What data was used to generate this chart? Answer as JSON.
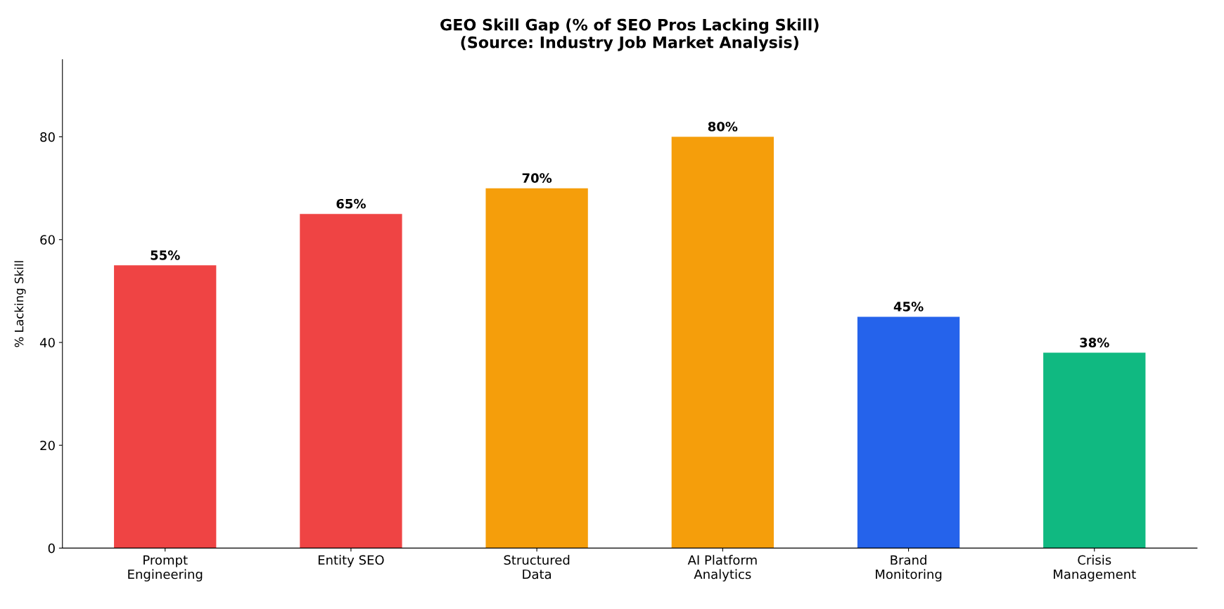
{
  "chart_data": {
    "type": "bar",
    "title": "GEO Skill Gap (% of SEO Pros Lacking Skill)\n(Source: Industry Job Market Analysis)",
    "ylabel": "% Lacking Skill",
    "categories": [
      "Prompt\nEngineering",
      "Entity SEO",
      "Structured\nData",
      "AI Platform\nAnalytics",
      "Brand\nMonitoring",
      "Crisis\nManagement"
    ],
    "values": [
      55,
      65,
      70,
      80,
      45,
      38
    ],
    "colors": [
      "#ef4444",
      "#ef4444",
      "#f59e0b",
      "#f59e0b",
      "#2563eb",
      "#10b981"
    ],
    "value_labels": [
      "55%",
      "65%",
      "70%",
      "80%",
      "45%",
      "38%"
    ],
    "ylim": [
      0,
      95
    ],
    "yticks": [
      0,
      20,
      40,
      60,
      80
    ],
    "grid": false
  }
}
